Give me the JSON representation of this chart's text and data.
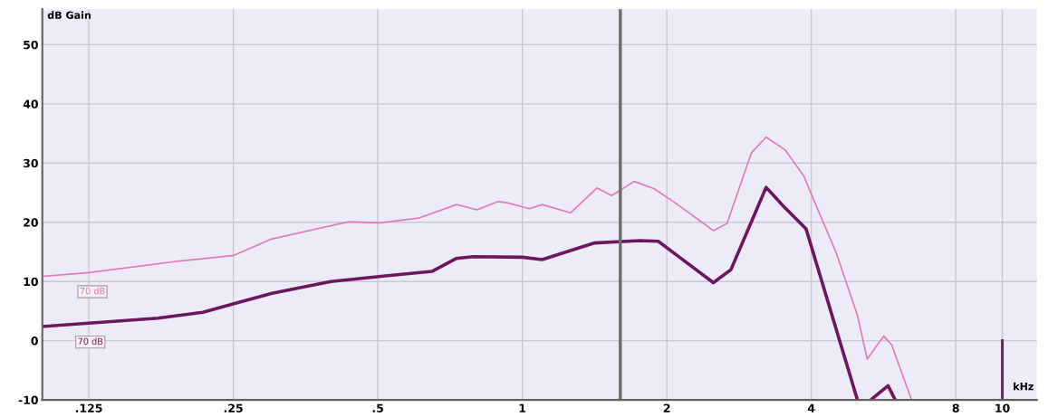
{
  "chart_data": {
    "type": "line",
    "xlabel": "kHz",
    "ylabel": "dB Gain",
    "log": "x",
    "xlim": [
      0.1,
      11.8
    ],
    "ylim": [
      -10,
      56
    ],
    "xticks": [
      {
        "value": 0.125,
        "label": ".125"
      },
      {
        "value": 0.25,
        "label": ".25"
      },
      {
        "value": 0.5,
        "label": ".5"
      },
      1,
      2,
      4,
      8,
      10
    ],
    "yticks": [
      -10,
      0,
      10,
      20,
      30,
      40,
      50
    ],
    "grid": true,
    "marker": "none",
    "line_style": "solid",
    "series": [
      {
        "name": "70 dB",
        "color": "#e27ab4",
        "x": [
          0.101,
          0.125,
          0.195,
          0.25,
          0.301,
          0.435,
          0.504,
          0.608,
          0.729,
          0.805,
          0.89,
          0.929,
          1.035,
          1.1,
          1.26,
          1.43,
          1.535,
          1.71,
          1.88,
          2.08,
          2.5,
          2.67,
          3.0,
          3.22,
          3.53,
          3.86,
          4.07,
          4.5,
          4.99,
          5.23,
          5.66,
          5.88,
          6.47
        ],
        "values": [
          10.9,
          11.5,
          13.5,
          14.4,
          17.2,
          20.1,
          19.9,
          20.7,
          23,
          22.1,
          23.5,
          23.3,
          22.3,
          23,
          21.6,
          25.8,
          24.5,
          26.9,
          25.7,
          23.3,
          18.6,
          19.8,
          31.7,
          34.4,
          32.2,
          27.8,
          23.3,
          15,
          4.3,
          -3.1,
          0.8,
          -0.7,
          -10
        ]
      },
      {
        "name": "70 dB",
        "color": "#6e1560",
        "x": [
          0.1,
          0.174,
          0.216,
          0.301,
          0.399,
          0.513,
          0.648,
          0.729,
          0.791,
          1.0,
          1.1,
          1.41,
          1.76,
          1.92,
          2.15,
          2.5,
          2.72,
          3.22,
          3.5,
          3.9,
          4.99,
          5.15,
          5.32,
          5.78,
          5.98
        ],
        "values": [
          2.4,
          3.8,
          4.8,
          8.0,
          10,
          10.9,
          11.7,
          13.9,
          14.2,
          14.1,
          13.7,
          16.5,
          16.9,
          16.8,
          13.8,
          9.8,
          12,
          25.9,
          22.7,
          18.9,
          -10,
          null,
          -10,
          -7.6,
          -10
        ]
      },
      {
        "color": "#7a1f6e",
        "x": [
          10,
          10
        ],
        "values": [
          -10,
          0
        ]
      }
    ],
    "ref_lines": [
      {
        "axis": "x",
        "value": 1.6,
        "color": "#6e6e6e"
      }
    ]
  }
}
